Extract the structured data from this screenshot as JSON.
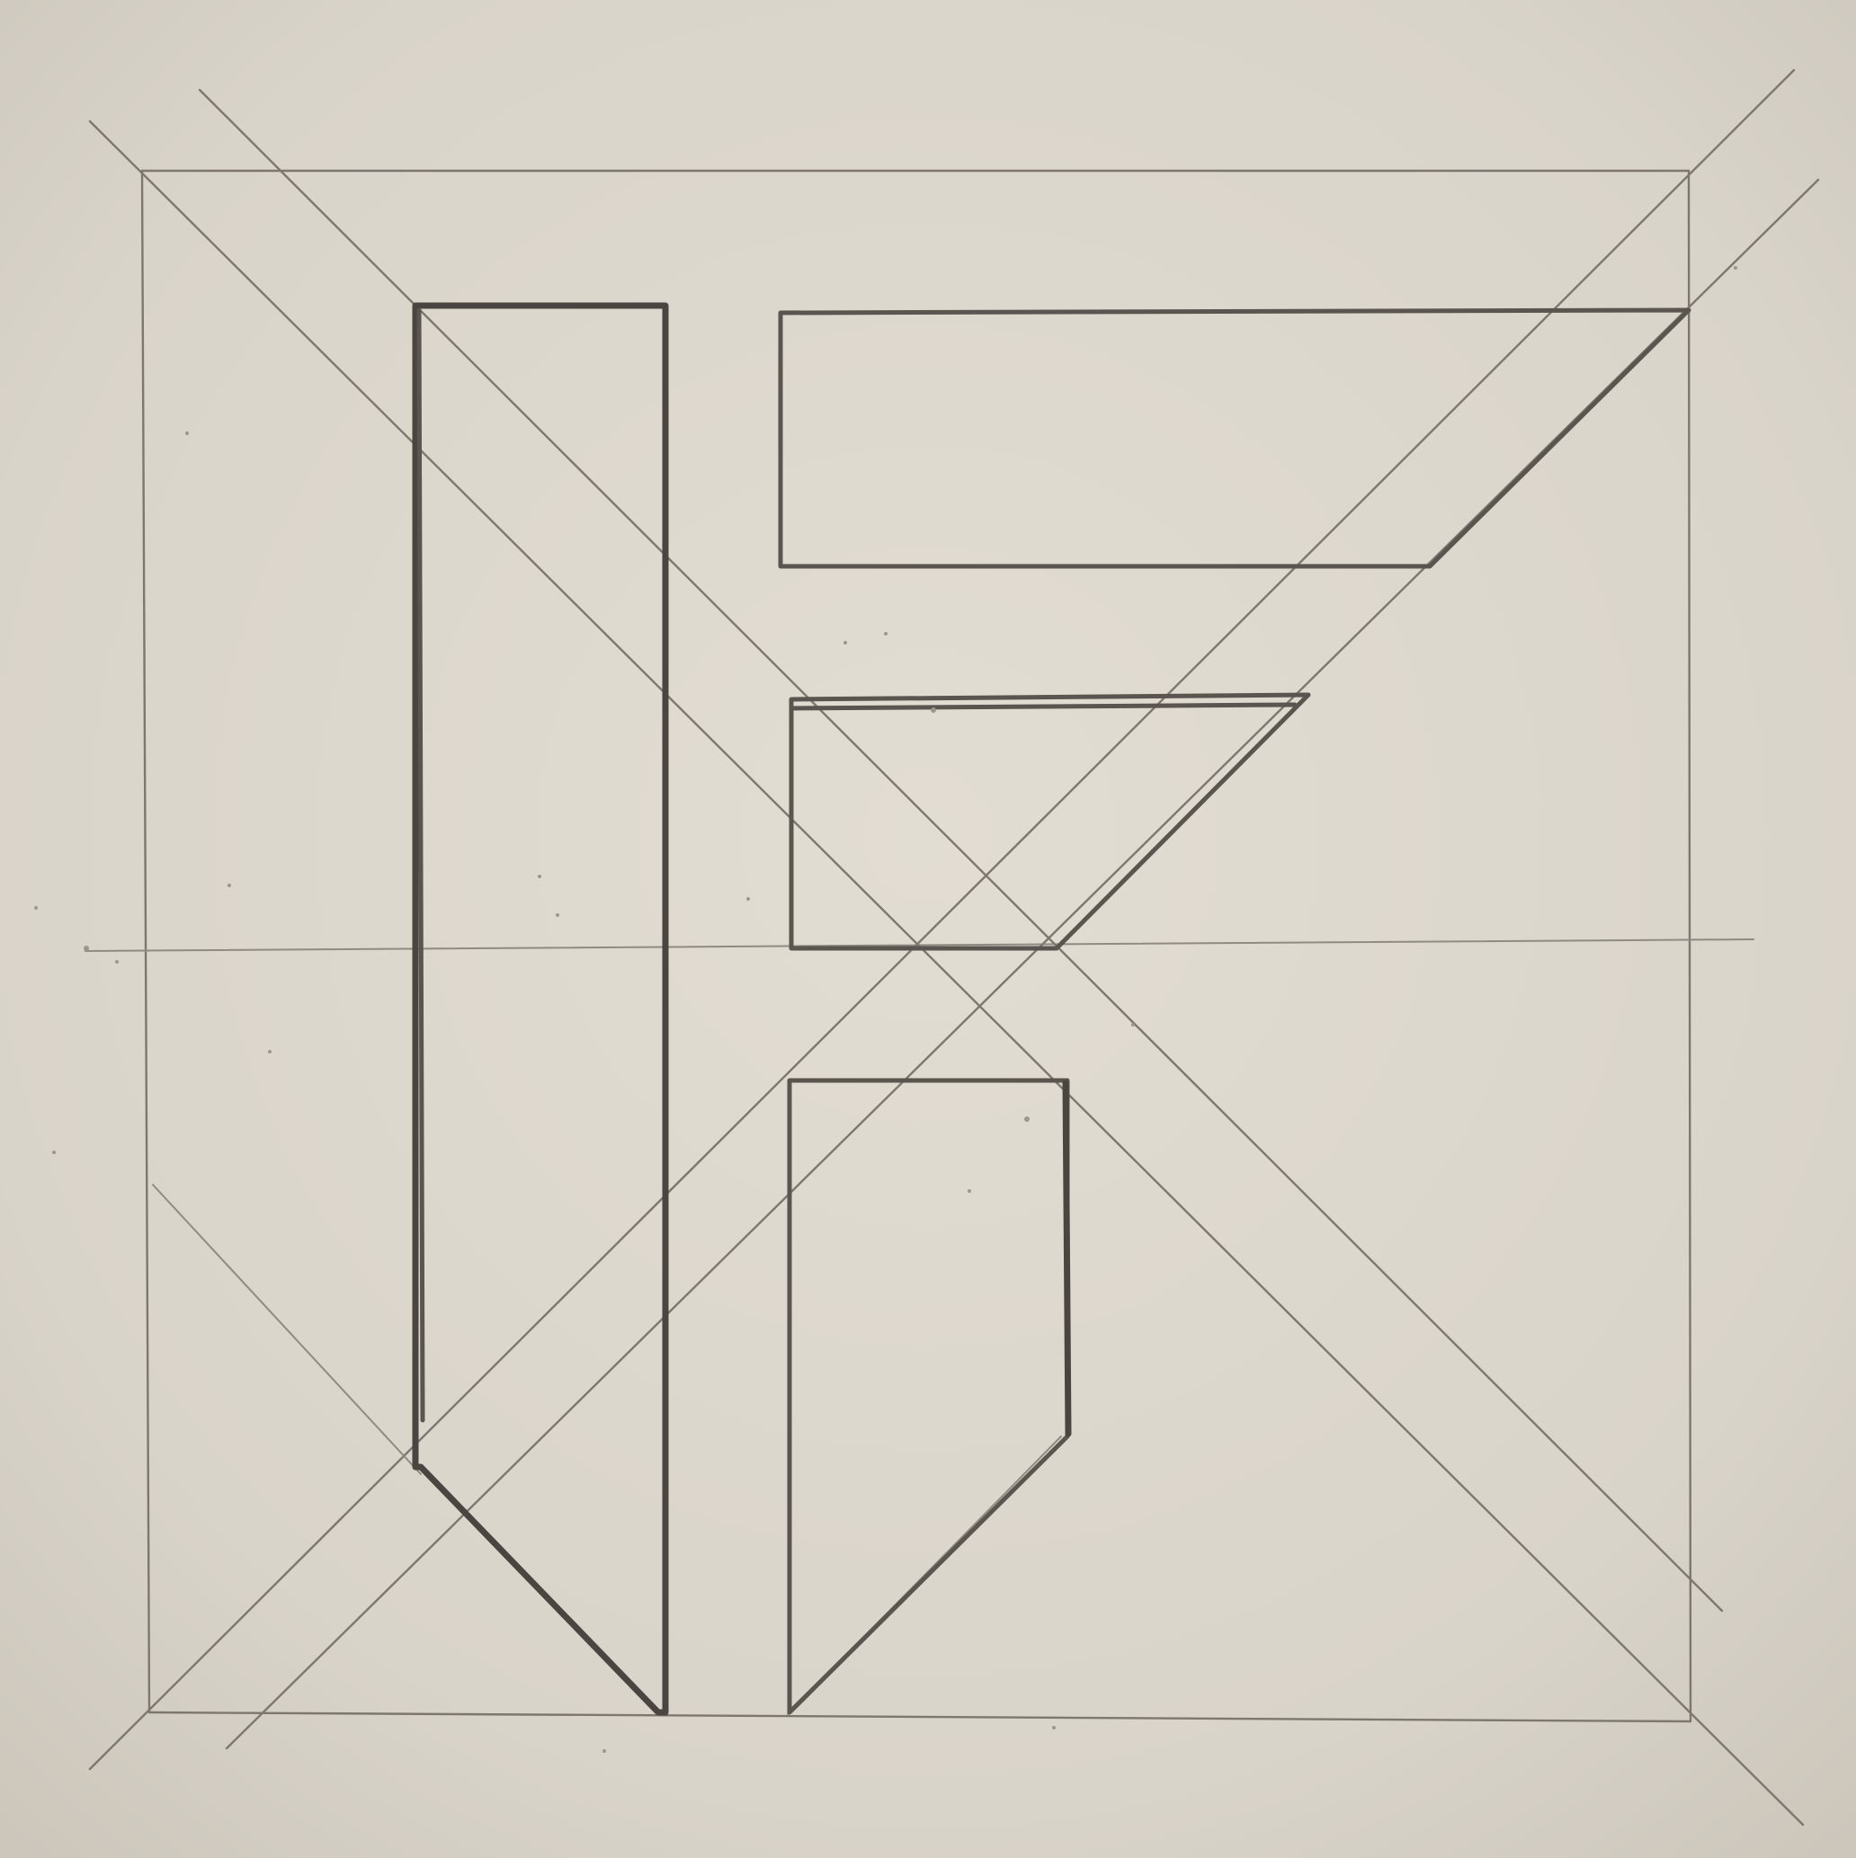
{
  "paper": {
    "background": "#dcd7cd",
    "vignette": "#cfc9be",
    "graphite": "#5a554e"
  },
  "drawing": {
    "subject": "pencil-monogram-sketch"
  }
}
